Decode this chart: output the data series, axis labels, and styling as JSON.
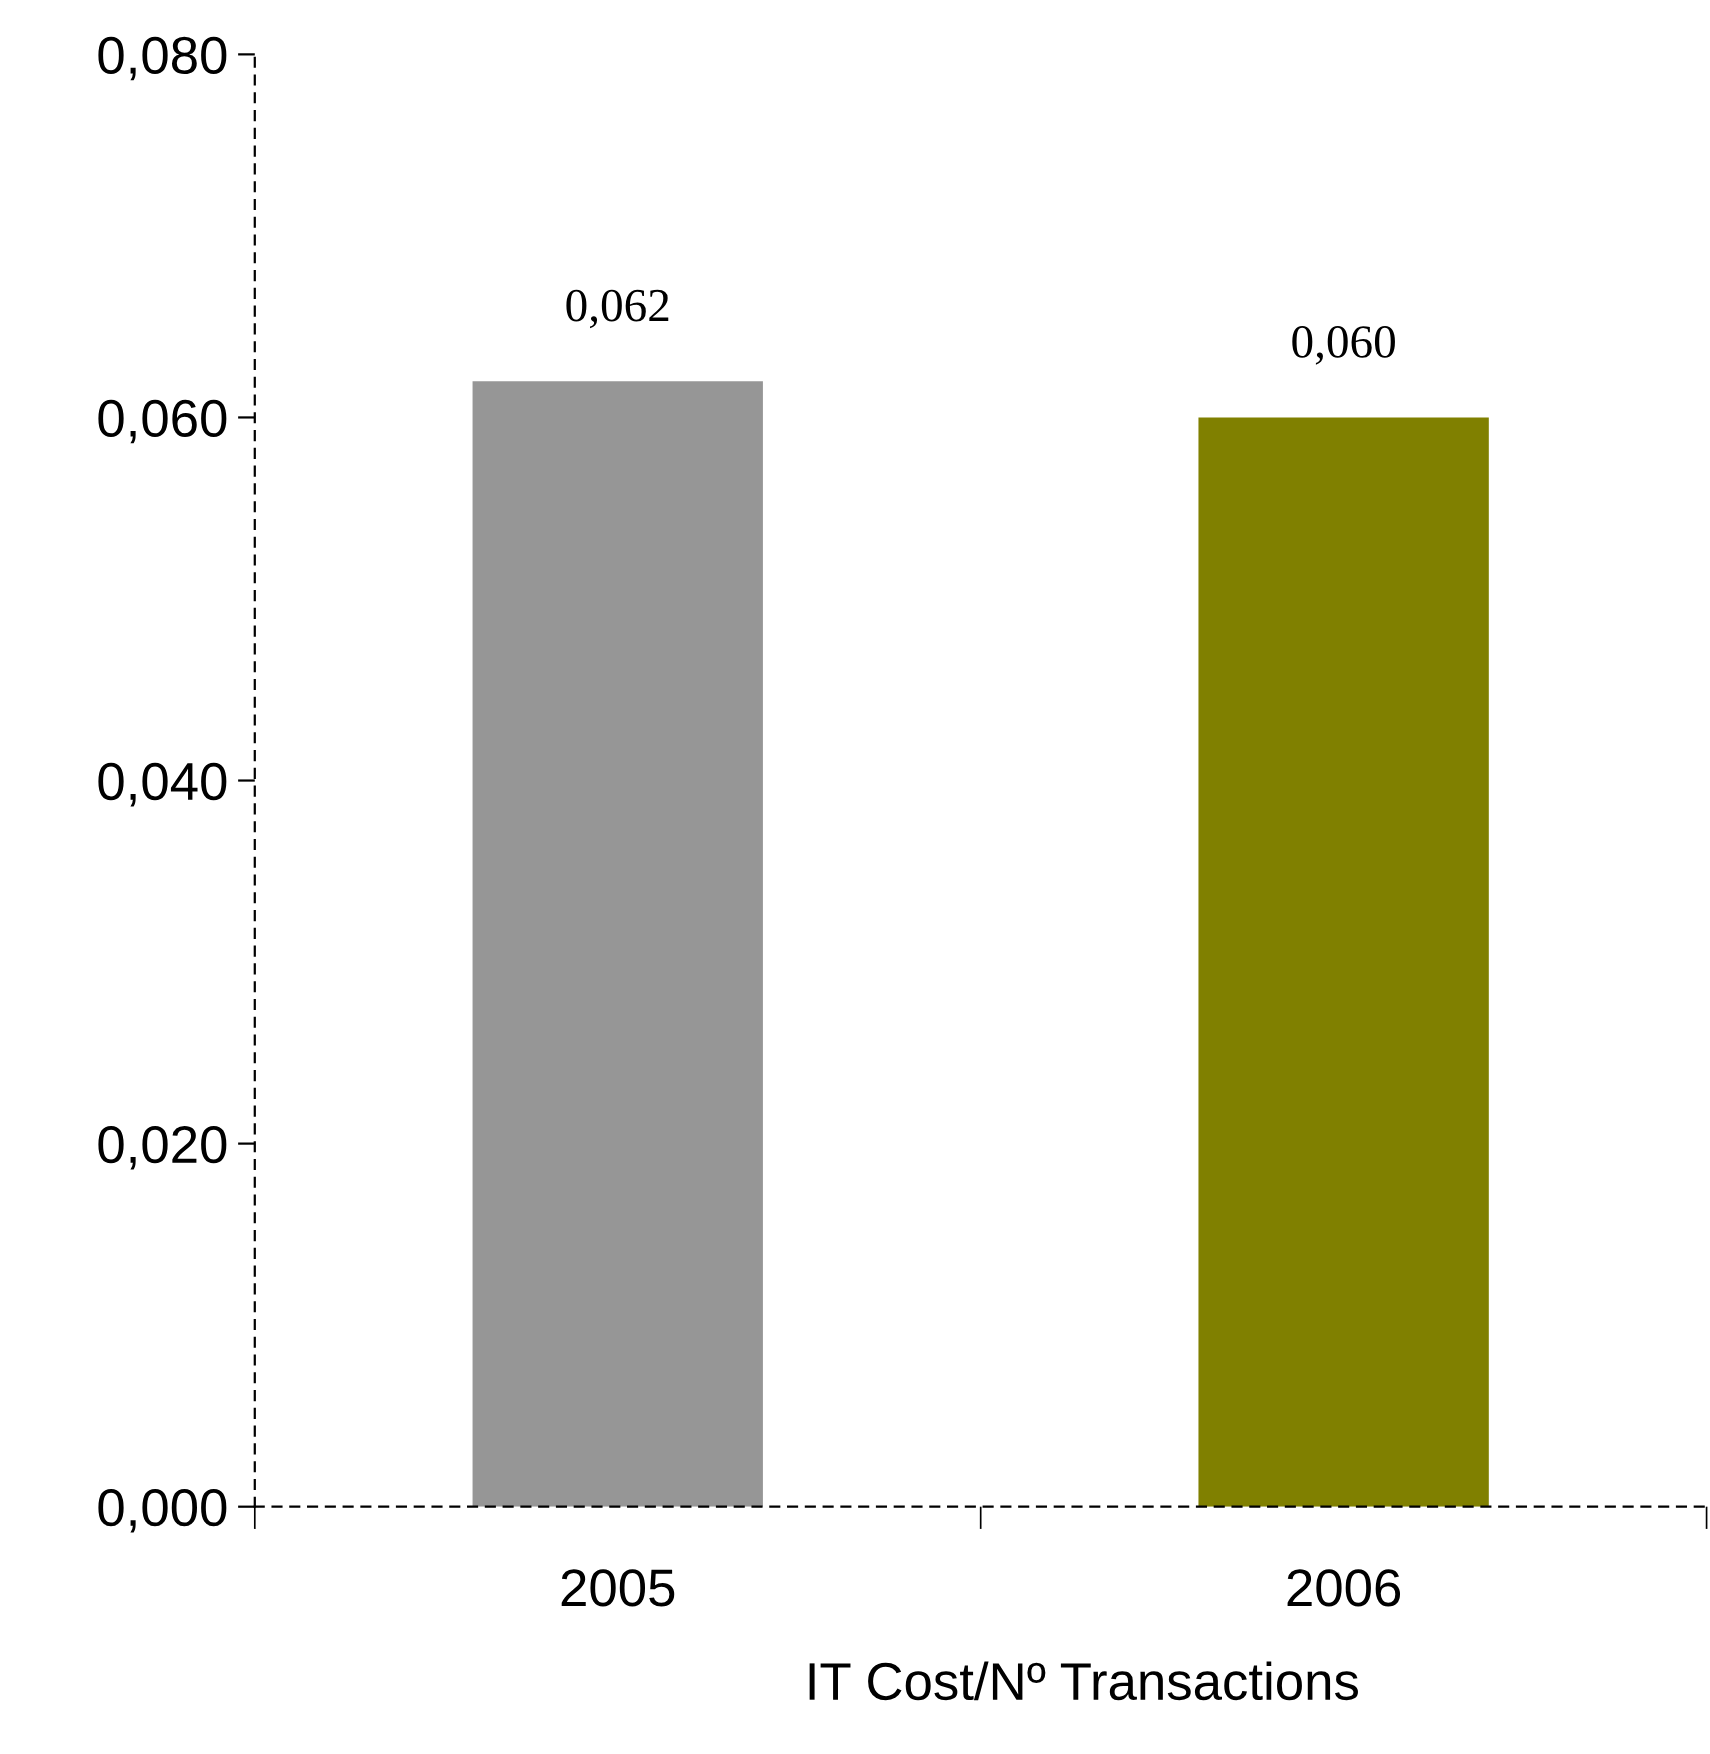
{
  "chart_data": {
    "type": "bar",
    "categories": [
      "2005",
      "2006"
    ],
    "values": [
      0.062,
      0.06
    ],
    "colors": [
      "#969696",
      "#808000"
    ],
    "value_labels": [
      "0,062",
      "0,060"
    ],
    "xlabel": "IT Cost/Nº Transactions",
    "ylim": [
      0,
      0.08
    ],
    "yticks": [
      {
        "value": 0,
        "label": "0,000"
      },
      {
        "value": 0.02,
        "label": "0,020"
      },
      {
        "value": 0.04,
        "label": "0,040"
      },
      {
        "value": 0.06,
        "label": "0,060"
      },
      {
        "value": 0.08,
        "label": "0,080"
      }
    ],
    "grid": false,
    "legend": false
  }
}
